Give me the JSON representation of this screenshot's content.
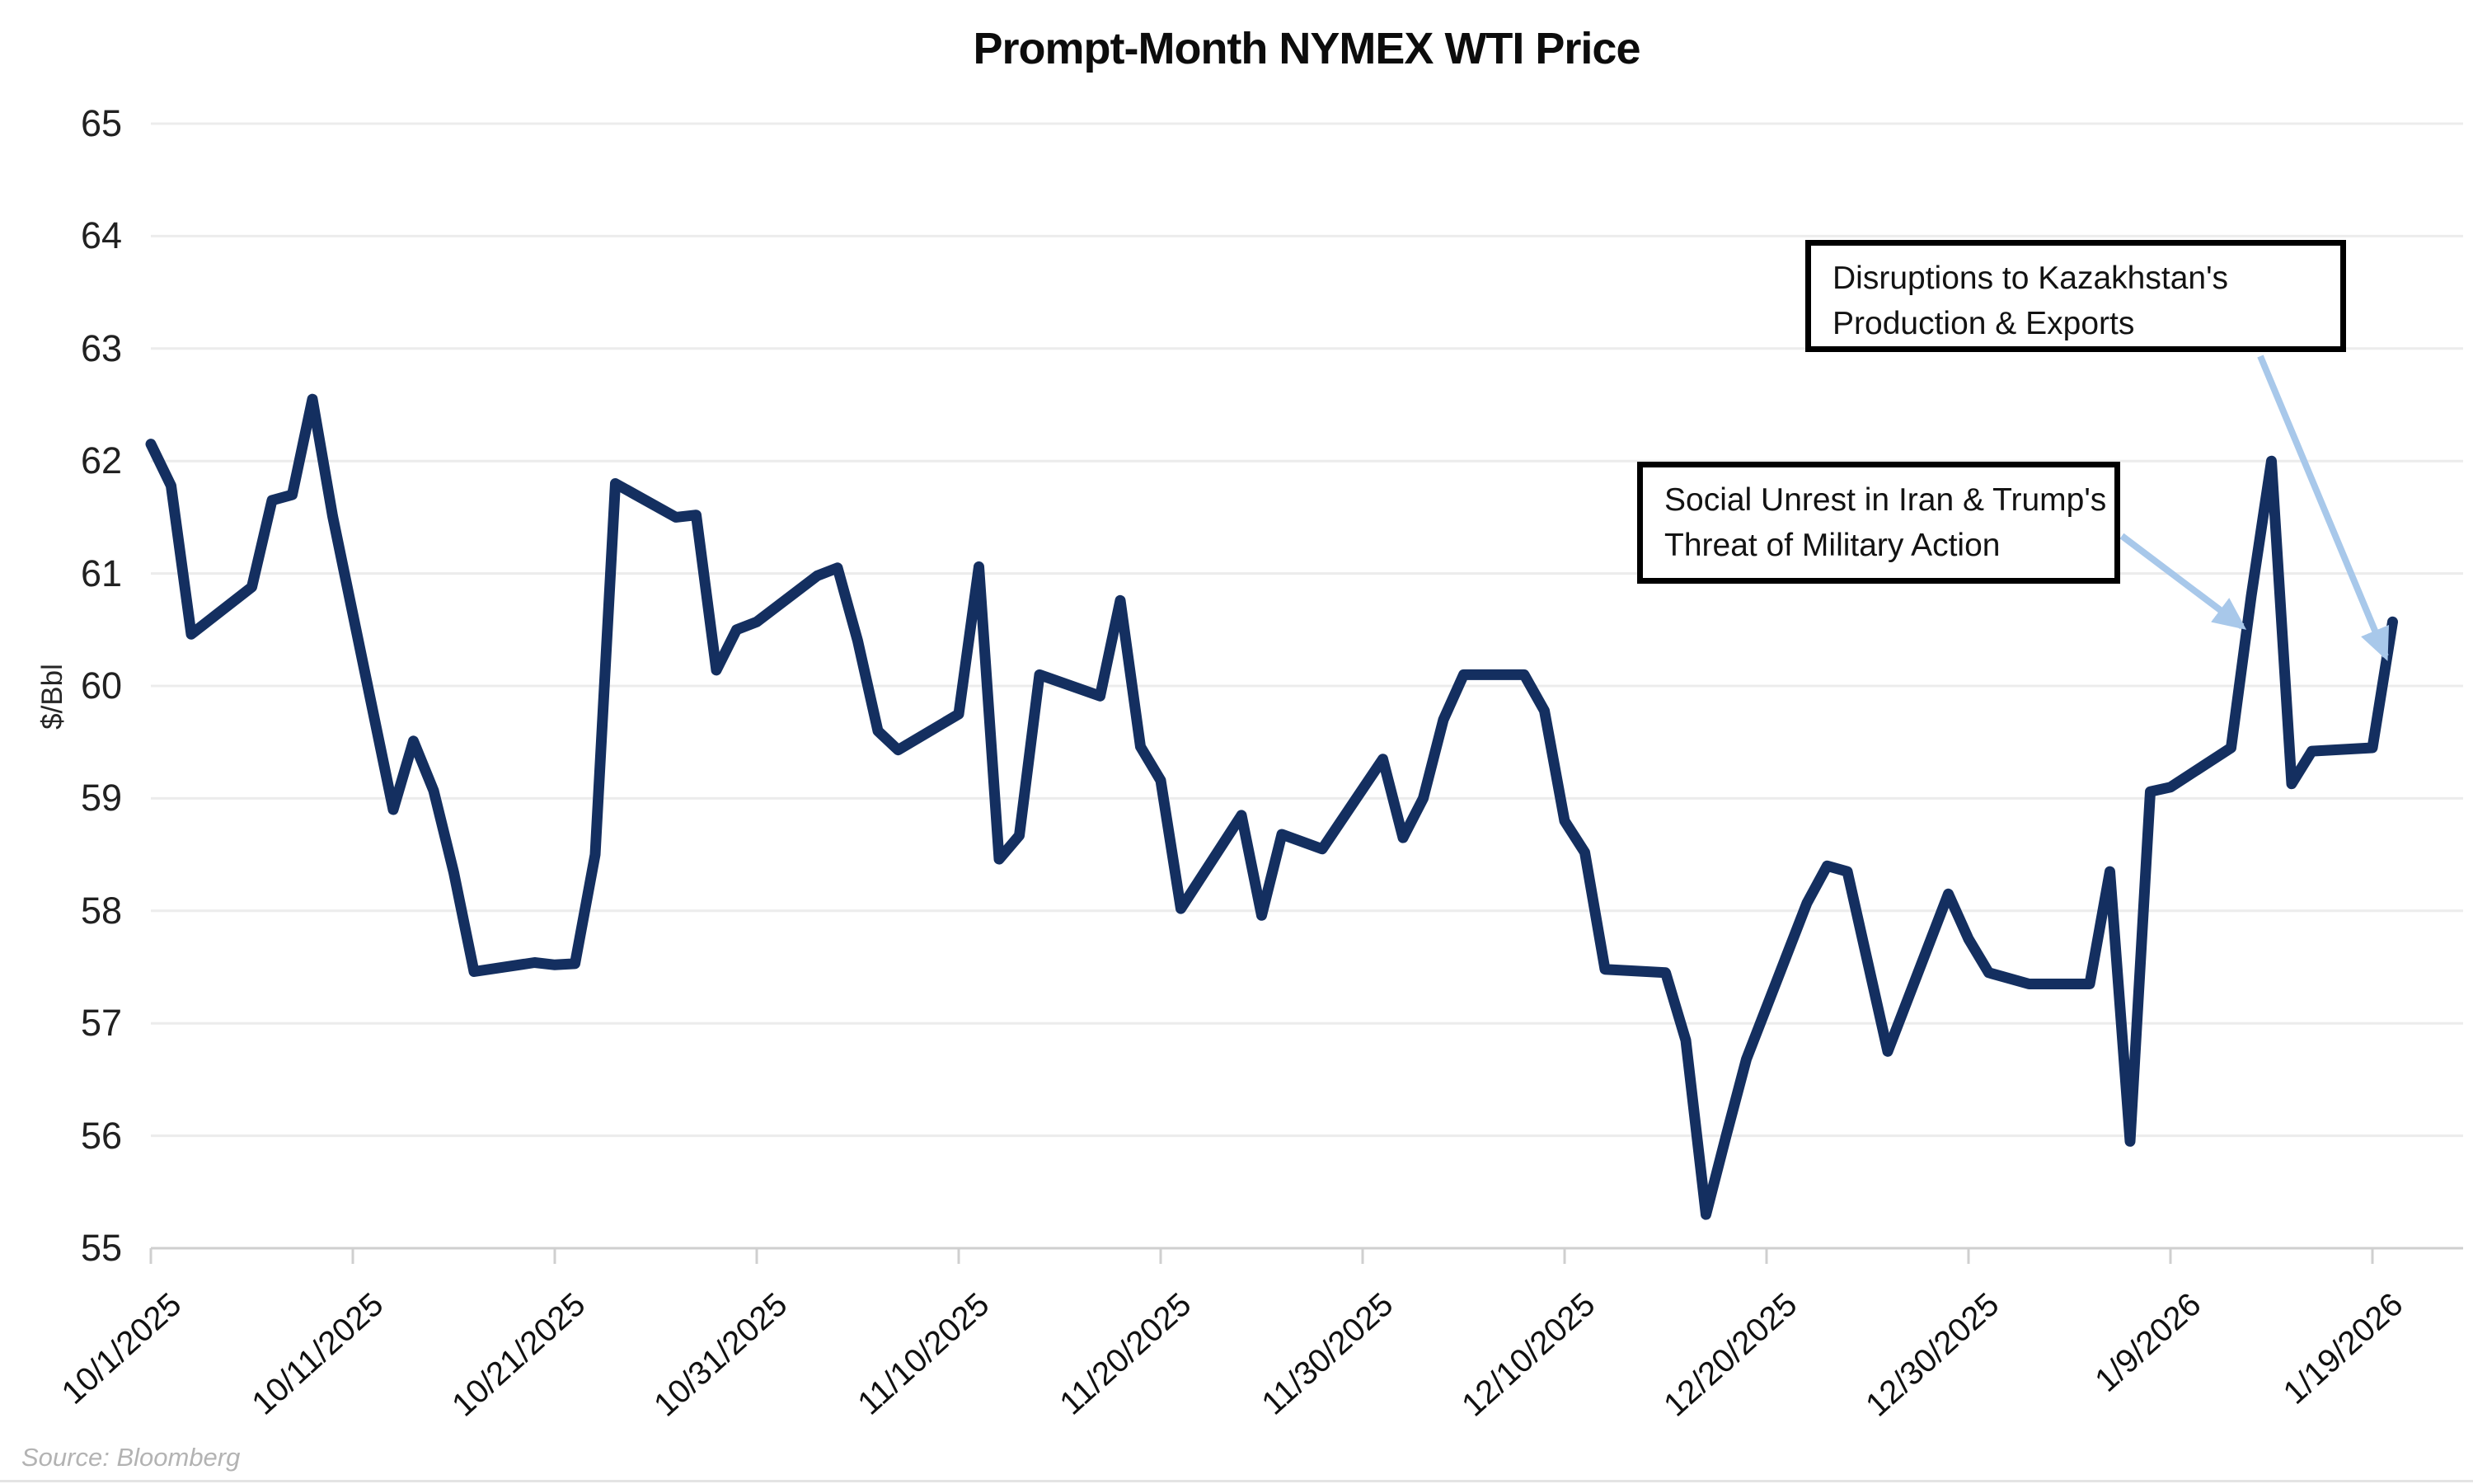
{
  "title": "Prompt-Month NYMEX WTI Price",
  "source_note": "Source: Bloomberg",
  "annotations": {
    "kazakhstan": {
      "line1": "Disruptions to Kazakhstan's",
      "line2": "Production & Exports"
    },
    "iran": {
      "line1": "Social Unrest in Iran & Trump's",
      "line2": "Threat of Military Action"
    }
  },
  "chart_data": {
    "type": "line",
    "title": "Prompt-Month NYMEX WTI Price",
    "xlabel": "",
    "ylabel": "$/Bbl",
    "ylim": [
      55,
      65
    ],
    "ytick_step": 1,
    "grid": "horizontal",
    "legend": "none",
    "y_tick_labels": [
      "55",
      "56",
      "57",
      "58",
      "59",
      "60",
      "61",
      "62",
      "63",
      "64",
      "65"
    ],
    "x_tick_labels": [
      "10/1/2025",
      "10/11/2025",
      "10/21/2025",
      "10/31/2025",
      "11/10/2025",
      "11/20/2025",
      "11/30/2025",
      "12/10/2025",
      "12/20/2025",
      "12/30/2025",
      "1/9/2026",
      "1/19/2026"
    ],
    "series": [
      {
        "name": "Prompt-month NYMEX WTI price ($/Bbl)",
        "color": "#142f60",
        "points": [
          {
            "d": "10/1/2025",
            "v": 62.15
          },
          {
            "d": "10/2/2025",
            "v": 61.78
          },
          {
            "d": "10/3/2025",
            "v": 60.46
          },
          {
            "d": "10/6/2025",
            "v": 60.88
          },
          {
            "d": "10/7/2025",
            "v": 61.65
          },
          {
            "d": "10/8/2025",
            "v": 61.7
          },
          {
            "d": "10/9/2025",
            "v": 62.55
          },
          {
            "d": "10/10/2025",
            "v": 61.51
          },
          {
            "d": "10/13/2025",
            "v": 58.9
          },
          {
            "d": "10/14/2025",
            "v": 59.51
          },
          {
            "d": "10/15/2025",
            "v": 59.07
          },
          {
            "d": "10/16/2025",
            "v": 58.34
          },
          {
            "d": "10/17/2025",
            "v": 57.46
          },
          {
            "d": "10/20/2025",
            "v": 57.54
          },
          {
            "d": "10/21/2025",
            "v": 57.52
          },
          {
            "d": "10/22/2025",
            "v": 57.53
          },
          {
            "d": "10/23/2025",
            "v": 58.5
          },
          {
            "d": "10/24/2025",
            "v": 61.8
          },
          {
            "d": "10/27/2025",
            "v": 61.5
          },
          {
            "d": "10/28/2025",
            "v": 61.52
          },
          {
            "d": "10/29/2025",
            "v": 60.14
          },
          {
            "d": "10/30/2025",
            "v": 60.5
          },
          {
            "d": "10/31/2025",
            "v": 60.57
          },
          {
            "d": "11/3/2025",
            "v": 60.98
          },
          {
            "d": "11/4/2025",
            "v": 61.05
          },
          {
            "d": "11/5/2025",
            "v": 60.4
          },
          {
            "d": "11/6/2025",
            "v": 59.6
          },
          {
            "d": "11/7/2025",
            "v": 59.43
          },
          {
            "d": "11/10/2025",
            "v": 59.75
          },
          {
            "d": "11/11/2025",
            "v": 61.06
          },
          {
            "d": "11/12/2025",
            "v": 58.46
          },
          {
            "d": "11/13/2025",
            "v": 58.67
          },
          {
            "d": "11/14/2025",
            "v": 60.1
          },
          {
            "d": "11/17/2025",
            "v": 59.91
          },
          {
            "d": "11/18/2025",
            "v": 60.76
          },
          {
            "d": "11/19/2025",
            "v": 59.46
          },
          {
            "d": "11/20/2025",
            "v": 59.16
          },
          {
            "d": "11/21/2025",
            "v": 58.02
          },
          {
            "d": "11/24/2025",
            "v": 58.85
          },
          {
            "d": "11/25/2025",
            "v": 57.96
          },
          {
            "d": "11/26/2025",
            "v": 58.68
          },
          {
            "d": "11/28/2025",
            "v": 58.55
          },
          {
            "d": "12/1/2025",
            "v": 59.35
          },
          {
            "d": "12/2/2025",
            "v": 58.65
          },
          {
            "d": "12/3/2025",
            "v": 59.0
          },
          {
            "d": "12/4/2025",
            "v": 59.7
          },
          {
            "d": "12/5/2025",
            "v": 60.1
          },
          {
            "d": "12/8/2025",
            "v": 60.1
          },
          {
            "d": "12/9/2025",
            "v": 59.78
          },
          {
            "d": "12/10/2025",
            "v": 58.8
          },
          {
            "d": "12/11/2025",
            "v": 58.52
          },
          {
            "d": "12/12/2025",
            "v": 57.48
          },
          {
            "d": "12/15/2025",
            "v": 57.45
          },
          {
            "d": "12/16/2025",
            "v": 56.85
          },
          {
            "d": "12/17/2025",
            "v": 55.3
          },
          {
            "d": "12/18/2025",
            "v": 56.0
          },
          {
            "d": "12/19/2025",
            "v": 56.68
          },
          {
            "d": "12/22/2025",
            "v": 58.07
          },
          {
            "d": "12/23/2025",
            "v": 58.4
          },
          {
            "d": "12/24/2025",
            "v": 58.35
          },
          {
            "d": "12/26/2025",
            "v": 56.75
          },
          {
            "d": "12/29/2025",
            "v": 58.15
          },
          {
            "d": "12/30/2025",
            "v": 57.75
          },
          {
            "d": "12/31/2025",
            "v": 57.45
          },
          {
            "d": "1/2/2026",
            "v": 57.35
          },
          {
            "d": "1/5/2026",
            "v": 57.35
          },
          {
            "d": "1/6/2026",
            "v": 58.35
          },
          {
            "d": "1/7/2026",
            "v": 55.95
          },
          {
            "d": "1/8/2026",
            "v": 59.06
          },
          {
            "d": "1/9/2026",
            "v": 59.1
          },
          {
            "d": "1/12/2026",
            "v": 59.45
          },
          {
            "d": "1/13/2026",
            "v": 60.8
          },
          {
            "d": "1/14/2026",
            "v": 62.0
          },
          {
            "d": "1/15/2026",
            "v": 59.13
          },
          {
            "d": "1/16/2026",
            "v": 59.42
          },
          {
            "d": "1/19/2026",
            "v": 59.45
          },
          {
            "d": "1/20/2026",
            "v": 60.57
          }
        ]
      }
    ],
    "annotations": [
      {
        "text": "Disruptions to Kazakhstan's Production & Exports",
        "points_to": "final rally near 1/19/2026 (~60 $/Bbl)"
      },
      {
        "text": "Social Unrest in Iran & Trump's Threat of Military Action",
        "points_to": "steep rise near 1/12/2026 (~60.4 $/Bbl)"
      }
    ],
    "colors": {
      "line": "#142f60",
      "arrow": "#a8c8ea",
      "grid": "#ececec",
      "axis": "#cfcfcf",
      "tick_text": "#111111",
      "title_text": "#0c0c0c",
      "source_text": "#b3b3b3",
      "annotation_border": "#000000"
    }
  }
}
